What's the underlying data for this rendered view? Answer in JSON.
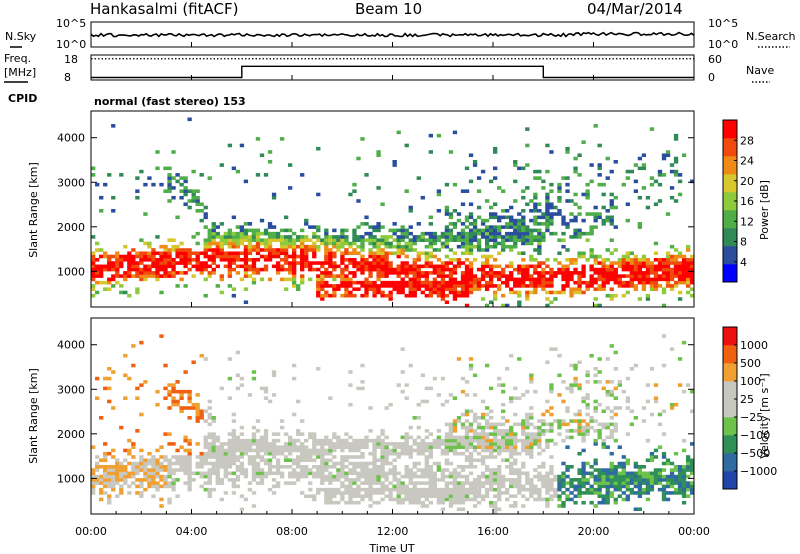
{
  "header": {
    "station": "Hankasalmi (fitACF)",
    "beam": "Beam 10",
    "date": "04/Mar/2014"
  },
  "noise_panel": {
    "left_label": "N.Sky",
    "right_label": "N.Search",
    "left_ticks": [
      "10^5",
      "10^0"
    ],
    "right_ticks": [
      "10^5",
      "10^0"
    ]
  },
  "freq_panel": {
    "label_top": "Freq.",
    "label_unit": "[MHz]",
    "left_ticks": [
      "18",
      "8"
    ],
    "right_label": "Nave",
    "right_ticks": [
      "60",
      "0"
    ],
    "freq_dotted_level": 0.85,
    "nave_steps": [
      {
        "t0": 0,
        "t1": 6,
        "v": 0.1
      },
      {
        "t0": 6,
        "t1": 18,
        "v": 0.55
      },
      {
        "t0": 18,
        "t1": 24,
        "v": 0.1
      }
    ]
  },
  "cpid": {
    "label": "CPID",
    "text": "normal (fast stereo) 153"
  },
  "chart_data": [
    {
      "type": "heatmap",
      "name": "power",
      "ylabel": "Slant Range [km]",
      "xlabel": "",
      "ylim": [
        200,
        4600
      ],
      "yticks": [
        1000,
        2000,
        3000,
        4000
      ],
      "colorbar_label": "Power [dB]",
      "colorbar_ticks": [
        "28",
        "24",
        "20",
        "16",
        "12",
        "8",
        "4"
      ],
      "colors": [
        "#0000ff",
        "#2a4d9e",
        "#2f8a57",
        "#4fae48",
        "#8dca3c",
        "#d7c62c",
        "#f08a16",
        "#f04a0c",
        "#ff0000"
      ]
    },
    {
      "type": "heatmap",
      "name": "velocity",
      "ylabel": "Slant Range [km]",
      "xlabel": "Time UT",
      "ylim": [
        200,
        4600
      ],
      "yticks": [
        1000,
        2000,
        3000,
        4000
      ],
      "xticks": [
        "00:00",
        "04:00",
        "08:00",
        "12:00",
        "16:00",
        "20:00",
        "00:00"
      ],
      "colorbar_label": "Velocity [m s⁻¹]",
      "colorbar_ticks": [
        "1000",
        "500",
        "100",
        "25",
        "−25",
        "−100",
        "−500",
        "−1000"
      ],
      "colors": [
        "#2244aa",
        "#2f6aa0",
        "#2f8f57",
        "#6cc24a",
        "#c8c8c0",
        "#c8c8c0",
        "#f0a030",
        "#f06010",
        "#ee1010"
      ]
    }
  ]
}
